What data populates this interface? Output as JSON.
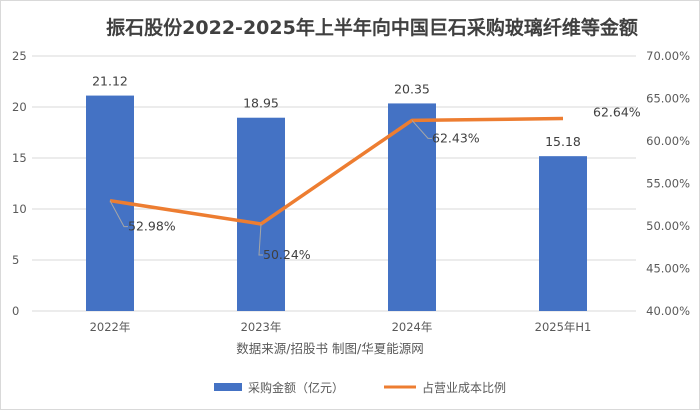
{
  "chart_data": {
    "type": "bar+line",
    "title": "振石股份2022-2025年上半年向中国巨石采购玻璃纤维等金额",
    "categories": [
      "2022年",
      "2023年",
      "2024年",
      "2025年H1"
    ],
    "series": [
      {
        "name": "采购金额（亿元）",
        "type": "bar",
        "axis": "left",
        "color": "#4472c4",
        "values": [
          21.12,
          18.95,
          20.35,
          15.18
        ],
        "labels": [
          "21.12",
          "18.95",
          "20.35",
          "15.18"
        ]
      },
      {
        "name": "占营业成本比例",
        "type": "line",
        "axis": "right",
        "color": "#ed7d31",
        "values": [
          52.98,
          50.24,
          62.43,
          62.64
        ],
        "labels": [
          "52.98%",
          "50.24%",
          "62.43%",
          "62.64%"
        ]
      }
    ],
    "left_axis": {
      "ylim": [
        0,
        25
      ],
      "ticks": [
        "0",
        "5",
        "10",
        "15",
        "20",
        "25"
      ]
    },
    "right_axis": {
      "ylim": [
        40,
        70
      ],
      "ticks": [
        "40.00%",
        "45.00%",
        "50.00%",
        "55.00%",
        "60.00%",
        "65.00%",
        "70.00%"
      ]
    },
    "grid": true,
    "legend": "bottom",
    "source_note": "数据来源/招股书 制图/华夏能源网"
  }
}
